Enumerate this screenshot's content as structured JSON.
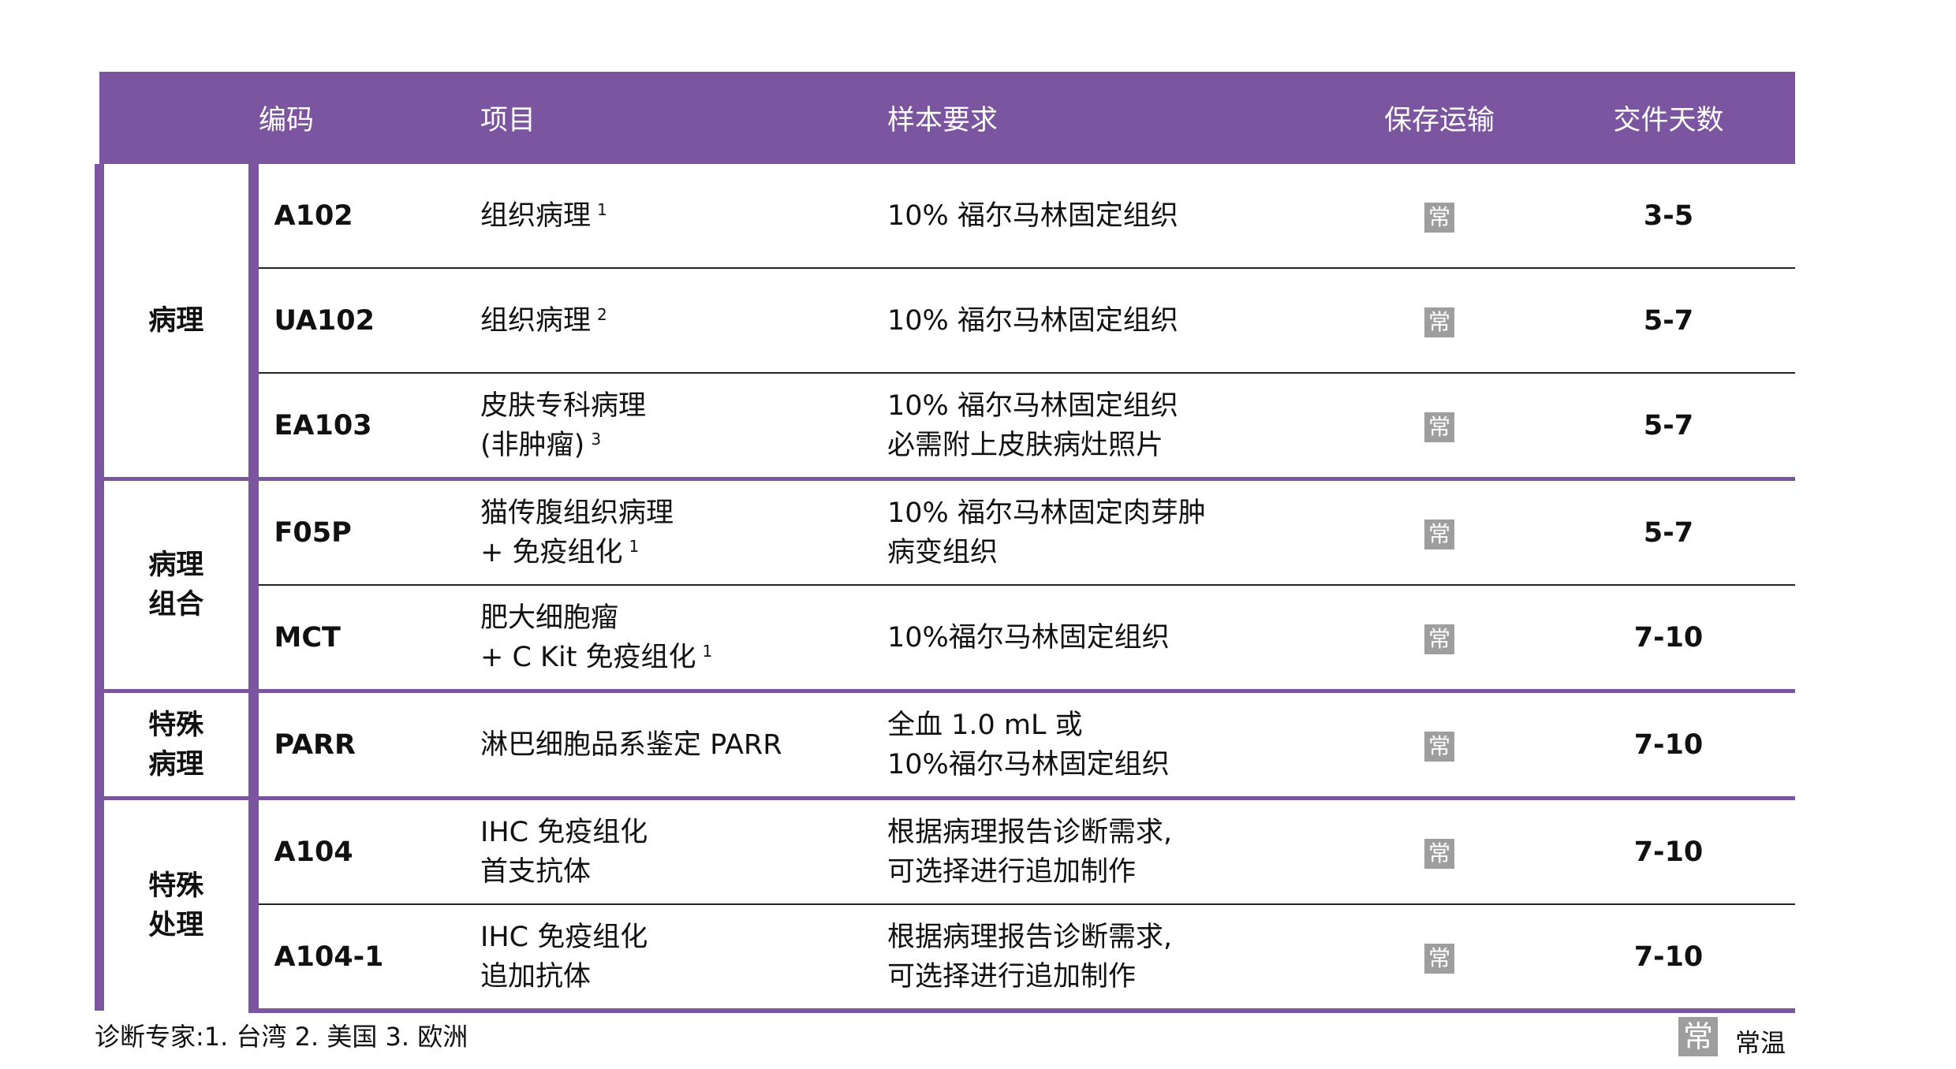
{
  "header": [
    "",
    "编码",
    "项目",
    "样本要求",
    "保存运输",
    "交件天数"
  ],
  "groups": [
    "病理",
    "病理\n组合",
    "特殊\n病理",
    "特殊\n处理"
  ],
  "rows": [
    {
      "code": "A102",
      "item": "组织病理",
      "sup": "1",
      "sample": "10% 福尔马林固定组织",
      "storage": "常",
      "days": "3-5"
    },
    {
      "code": "UA102",
      "item": "组织病理",
      "sup": "2",
      "sample": "10% 福尔马林固定组织",
      "storage": "常",
      "days": "5-7"
    },
    {
      "code": "EA103",
      "item": "皮肤专科病理\n(非肿瘤)",
      "sup": "3",
      "sample": "10% 福尔马林固定组织\n必需附上皮肤病灶照片",
      "storage": "常",
      "days": "5-7"
    },
    {
      "code": "F05P",
      "item": "猫传腹组织病理\n+ 免疫组化",
      "sup": "1",
      "sample": "10% 福尔马林固定肉芽肿\n病变组织",
      "storage": "常",
      "days": "5-7"
    },
    {
      "code": "MCT",
      "item": "肥大细胞瘤\n+ C Kit 免疫组化",
      "sup": "1",
      "sample": "10%福尔马林固定组织",
      "storage": "常",
      "days": "7-10"
    },
    {
      "code": "PARR",
      "item": "淋巴细胞品系鉴定 PARR",
      "sup": "",
      "sample": "全血 1.0 mL 或\n10%福尔马林固定组织",
      "storage": "常",
      "days": "7-10"
    },
    {
      "code": "A104",
      "item": "IHC 免疫组化\n首支抗体",
      "sup": "",
      "sample": "根据病理报告诊断需求,\n可选择进行追加制作",
      "storage": "常",
      "days": "7-10"
    },
    {
      "code": "A104-1",
      "item": "IHC 免疫组化\n追加抗体",
      "sup": "",
      "sample": "根据病理报告诊断需求,\n可选择进行追加制作",
      "storage": "常",
      "days": "7-10"
    }
  ],
  "footer": {
    "note": "诊断专家:1. 台湾 2. 美国 3. 欧洲",
    "legend_badge": "常",
    "legend_label": "常温"
  },
  "colors": {
    "accent": "#7B55A0",
    "badge": "#9e9e9e"
  }
}
